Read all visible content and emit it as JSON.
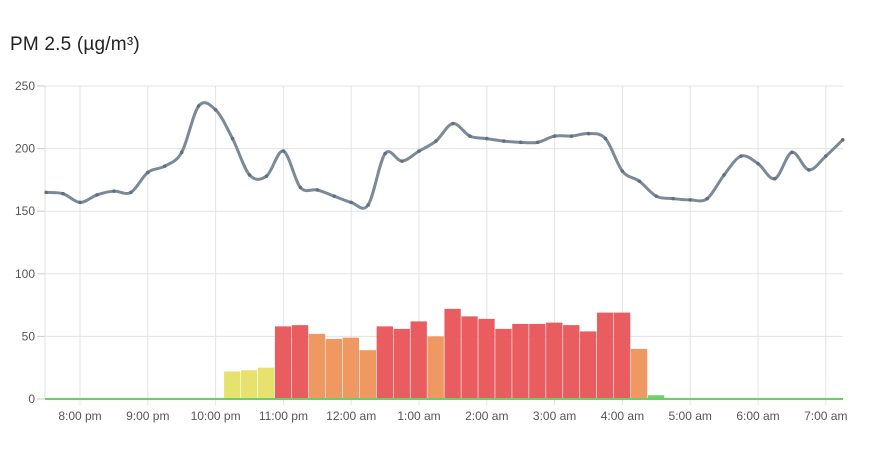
{
  "title": "PM 2.5 (µg/m³)",
  "chart_data": {
    "type": "bar",
    "title": "PM 2.5 (µg/m³)",
    "xlabel": "",
    "ylabel": "",
    "ylim": [
      0,
      250
    ],
    "yticks": [
      0,
      50,
      100,
      150,
      200,
      250
    ],
    "grid": true,
    "legend": "none",
    "x_tick_labels": [
      "8:00 pm",
      "9:00 pm",
      "10:00 pm",
      "11:00 pm",
      "12:00 am",
      "1:00 am",
      "2:00 am",
      "3:00 am",
      "4:00 am",
      "5:00 am",
      "6:00 am",
      "7:00 am"
    ],
    "x_range_hours": [
      -0.5,
      11.25
    ],
    "bars": {
      "x_hours": [
        -0.25,
        0.0,
        0.25,
        0.5,
        0.75,
        1.0,
        1.25,
        1.5,
        1.75,
        2.0,
        2.25,
        2.5,
        2.75,
        3.0,
        3.25,
        3.5,
        3.75,
        4.0,
        4.25,
        4.5,
        4.75,
        5.0,
        5.25,
        5.5,
        5.75,
        6.0,
        6.25,
        6.5,
        6.75,
        7.0,
        7.25,
        7.5,
        7.75,
        8.0,
        8.25,
        8.5,
        8.75,
        9.0,
        9.25,
        9.5,
        9.75,
        10.0,
        10.25,
        10.5,
        10.75,
        11.0
      ],
      "values": [
        0,
        0,
        0,
        0,
        0,
        0,
        0,
        0,
        0,
        0,
        22,
        23,
        25,
        58,
        59,
        52,
        48,
        49,
        39,
        58,
        56,
        62,
        50,
        72,
        66,
        64,
        56,
        60,
        60,
        61,
        59,
        54,
        69,
        69,
        40,
        3,
        0,
        0,
        0,
        0,
        0,
        0,
        0,
        0,
        0,
        0
      ],
      "colors": [
        "#66d166",
        "#66d166",
        "#66d166",
        "#66d166",
        "#66d166",
        "#66d166",
        "#66d166",
        "#66d166",
        "#66d166",
        "#66d166",
        "#e6e066",
        "#e6e066",
        "#e6e066",
        "#e85458",
        "#e85458",
        "#ee9258",
        "#ee9258",
        "#ee9258",
        "#ee9258",
        "#e85458",
        "#e85458",
        "#e85458",
        "#ee9258",
        "#e85458",
        "#e85458",
        "#e85458",
        "#e85458",
        "#e85458",
        "#e85458",
        "#e85458",
        "#e85458",
        "#e85458",
        "#e85458",
        "#e85458",
        "#ee9258",
        "#66d166",
        "#66d166",
        "#66d166",
        "#66d166",
        "#66d166",
        "#66d166",
        "#66d166",
        "#66d166",
        "#66d166",
        "#66d166",
        "#66d166"
      ]
    },
    "line": {
      "color": "#7a8a99",
      "x_hours": [
        -0.5,
        -0.25,
        0.0,
        0.25,
        0.5,
        0.75,
        1.0,
        1.25,
        1.5,
        1.75,
        2.0,
        2.25,
        2.5,
        2.75,
        3.0,
        3.25,
        3.5,
        3.75,
        4.0,
        4.25,
        4.5,
        4.75,
        5.0,
        5.25,
        5.5,
        5.75,
        6.0,
        6.25,
        6.5,
        6.75,
        7.0,
        7.25,
        7.5,
        7.75,
        8.0,
        8.25,
        8.5,
        8.75,
        9.0,
        9.25,
        9.5,
        9.75,
        10.0,
        10.25,
        10.5,
        10.75,
        11.0,
        11.25
      ],
      "values": [
        165,
        164,
        157,
        163,
        166,
        165,
        181,
        186,
        197,
        234,
        231,
        208,
        179,
        178,
        198,
        169,
        167,
        162,
        157,
        155,
        196,
        190,
        198,
        206,
        220,
        210,
        208,
        206,
        205,
        205,
        210,
        210,
        212,
        208,
        182,
        174,
        162,
        160,
        159,
        160,
        179,
        194,
        188,
        176,
        197,
        183,
        194,
        207
      ]
    }
  }
}
